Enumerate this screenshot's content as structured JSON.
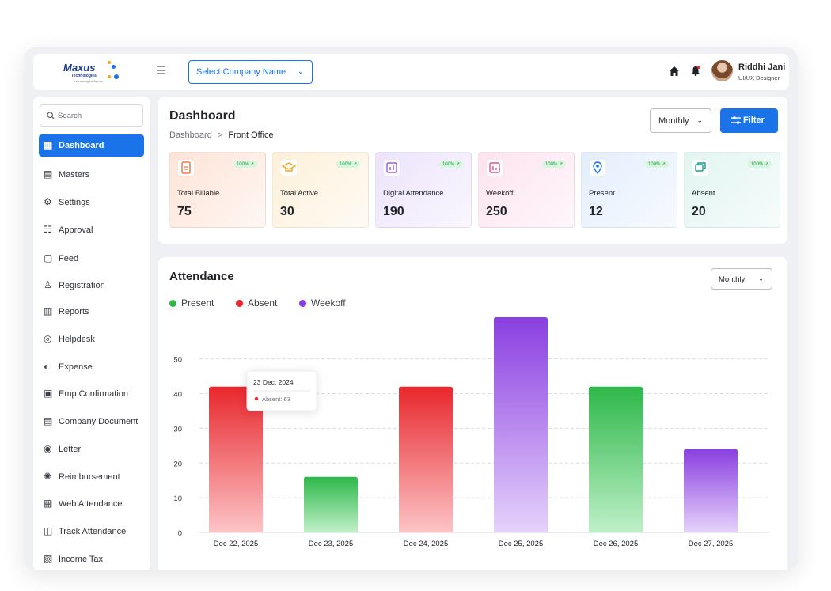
{
  "header": {
    "logo": {
      "brand": "Maxus",
      "sub": "Technologies",
      "tagline": "Harnessing Intelligence"
    },
    "company_select": "Select Company Name",
    "user": {
      "name": "Riddhi Jani",
      "role": "UI/UX Designer"
    }
  },
  "sidebar": {
    "search_placeholder": "Search",
    "items": [
      {
        "label": "Dashboard",
        "icon": "grid-icon",
        "active": true
      },
      {
        "label": "Masters",
        "icon": "database-icon"
      },
      {
        "label": "Settings",
        "icon": "gear-icon"
      },
      {
        "label": "Approval",
        "icon": "checklist-icon"
      },
      {
        "label": "Feed",
        "icon": "feed-icon"
      },
      {
        "label": "Registration",
        "icon": "user-add-icon"
      },
      {
        "label": "Reports",
        "icon": "report-icon"
      },
      {
        "label": "Helpdesk",
        "icon": "lifebuoy-icon"
      },
      {
        "label": "Expense",
        "icon": "wallet-icon"
      },
      {
        "label": "Emp Confirmation",
        "icon": "id-card-icon"
      },
      {
        "label": "Company Document",
        "icon": "document-icon"
      },
      {
        "label": "Letter",
        "icon": "letter-icon"
      },
      {
        "label": "Reimbursement",
        "icon": "reimburse-icon"
      },
      {
        "label": "Web Attendance",
        "icon": "web-icon"
      },
      {
        "label": "Track Attendance",
        "icon": "track-icon"
      },
      {
        "label": "Income Tax",
        "icon": "tax-icon"
      }
    ]
  },
  "dashboard": {
    "title": "Dashboard",
    "breadcrumb_root": "Dashboard",
    "breadcrumb_sep": ">",
    "breadcrumb_current": "Front Office",
    "period": "Monthly",
    "filter_label": "Filter",
    "stats": [
      {
        "label": "Total Billable",
        "value": "75",
        "badge": "100% ↗",
        "icon": "document-icon",
        "bg": "#fde3d6",
        "accent": "#f07b3f"
      },
      {
        "label": "Total Active",
        "value": "30",
        "badge": "100% ↗",
        "icon": "graduation-cap-icon",
        "bg": "#fdf0d9",
        "accent": "#f5a623"
      },
      {
        "label": "Digital Attendance",
        "value": "190",
        "badge": "100% ↗",
        "icon": "chart-square-icon",
        "bg": "#ece3fb",
        "accent": "#9b59e6"
      },
      {
        "label": "Weekoff",
        "value": "250",
        "badge": "100% ↗",
        "icon": "bar-square-icon",
        "bg": "#fde3ef",
        "accent": "#e8508a"
      },
      {
        "label": "Present",
        "value": "12",
        "badge": "100% ↗",
        "icon": "location-pin-icon",
        "bg": "#e3eefc",
        "accent": "#1a73e8"
      },
      {
        "label": "Absent",
        "value": "20",
        "badge": "100% ↗",
        "icon": "chat-icon",
        "bg": "#e1f5f1",
        "accent": "#14a38b"
      }
    ]
  },
  "attendance": {
    "title": "Attendance",
    "period": "Monthly",
    "legend": [
      {
        "name": "Present",
        "color": "#2eb84a"
      },
      {
        "name": "Absent",
        "color": "#e8282e"
      },
      {
        "name": "Weekoff",
        "color": "#8a3fe0"
      }
    ],
    "tooltip": {
      "date": "23 Dec, 2024",
      "text": "Absent: 63"
    }
  },
  "chart_data": {
    "type": "bar",
    "categories": [
      "Dec 22, 2025",
      "Dec 23, 2025",
      "Dec 24, 2025",
      "Dec 25, 2025",
      "Dec 26, 2025",
      "Dec 27, 2025"
    ],
    "values": [
      42,
      16,
      42,
      62,
      42,
      24
    ],
    "status": [
      "Absent",
      "Present",
      "Absent",
      "Weekoff",
      "Present",
      "Weekoff"
    ],
    "yticks": [
      0,
      10,
      20,
      30,
      40,
      50
    ],
    "ylim": [
      0,
      62
    ],
    "grid": true,
    "legend": "top-left"
  }
}
